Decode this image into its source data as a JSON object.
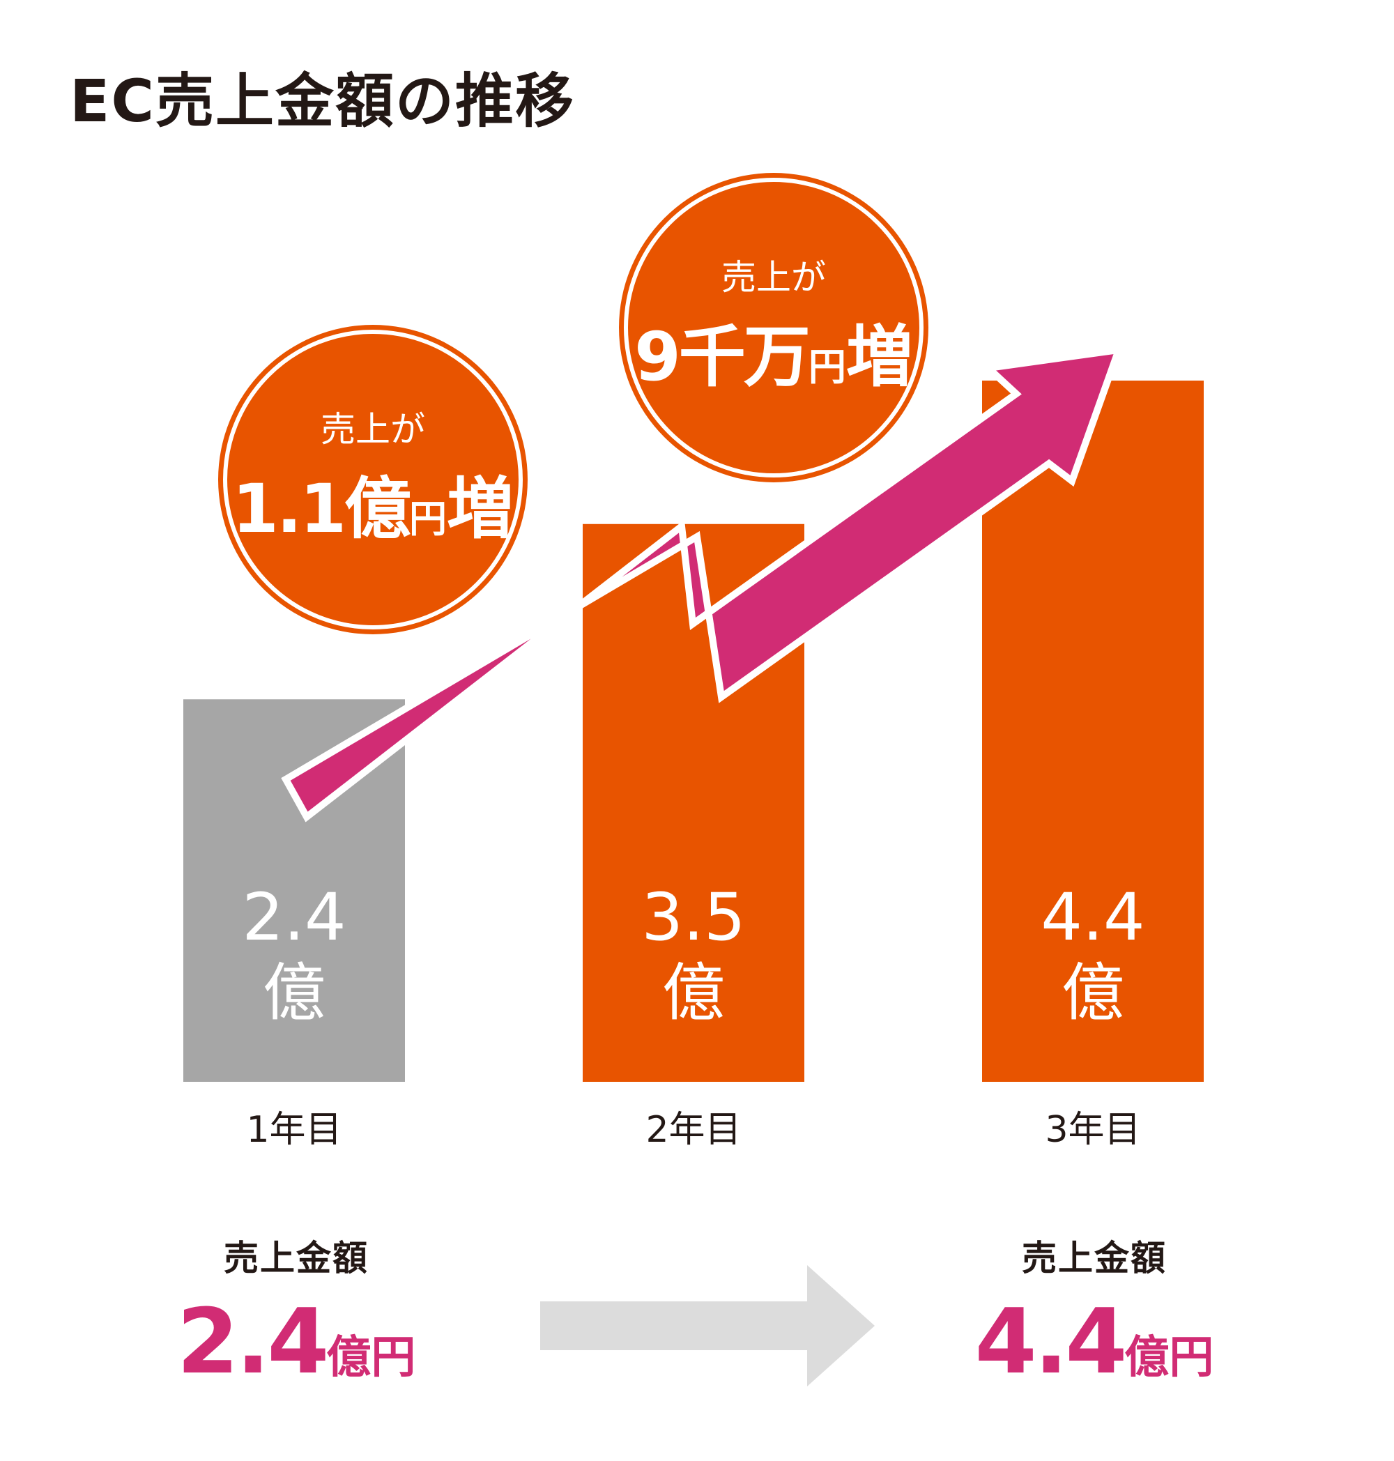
{
  "title": "EC売上金額の推移",
  "colors": {
    "accent": "#e85400",
    "first_bar": "#a6a6a6",
    "arrow": "#d12c74",
    "summary_value": "#d12c74",
    "flow_arrow": "#dcdcdc",
    "text": "#231815"
  },
  "chart_data": {
    "type": "bar",
    "categories": [
      "1年目",
      "2年目",
      "3年目"
    ],
    "values": [
      2.4,
      3.5,
      4.4
    ],
    "value_labels": [
      {
        "number": "2.4",
        "unit": "億"
      },
      {
        "number": "3.5",
        "unit": "億"
      },
      {
        "number": "4.4",
        "unit": "億"
      }
    ],
    "ylim": [
      0,
      4.4
    ],
    "grid": false
  },
  "bubbles": [
    {
      "line1": "売上が",
      "amount": "1.1億",
      "unit": "円",
      "suffix": "増"
    },
    {
      "line1": "売上が",
      "amount": "9千万",
      "unit": "円",
      "suffix": "増"
    }
  ],
  "summary": {
    "start": {
      "label": "売上金額",
      "value": "2.4",
      "unit": "億円"
    },
    "end": {
      "label": "売上金額",
      "value": "4.4",
      "unit": "億円"
    }
  }
}
